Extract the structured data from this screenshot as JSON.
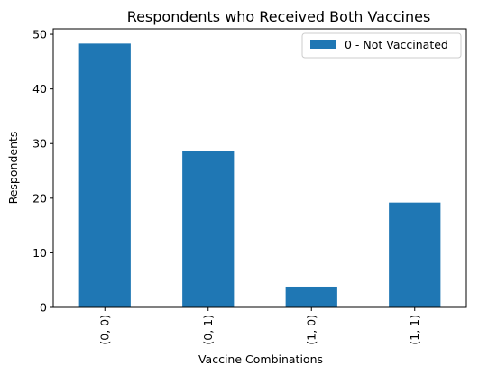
{
  "chart_data": {
    "type": "bar",
    "title": "Respondents who Received Both Vaccines",
    "xlabel": "Vaccine Combinations",
    "ylabel": "Respondents",
    "categories": [
      "(0, 0)",
      "(0, 1)",
      "(1, 0)",
      "(1, 1)"
    ],
    "series": [
      {
        "name": "0 - Not Vaccinated",
        "values": [
          48.3,
          28.6,
          3.8,
          19.2
        ]
      }
    ],
    "ylim": [
      0,
      51
    ],
    "yticks": [
      0,
      10,
      20,
      30,
      40,
      50
    ],
    "grid": false,
    "legend_position": "top-right",
    "bar_color": "#1f77b4"
  }
}
